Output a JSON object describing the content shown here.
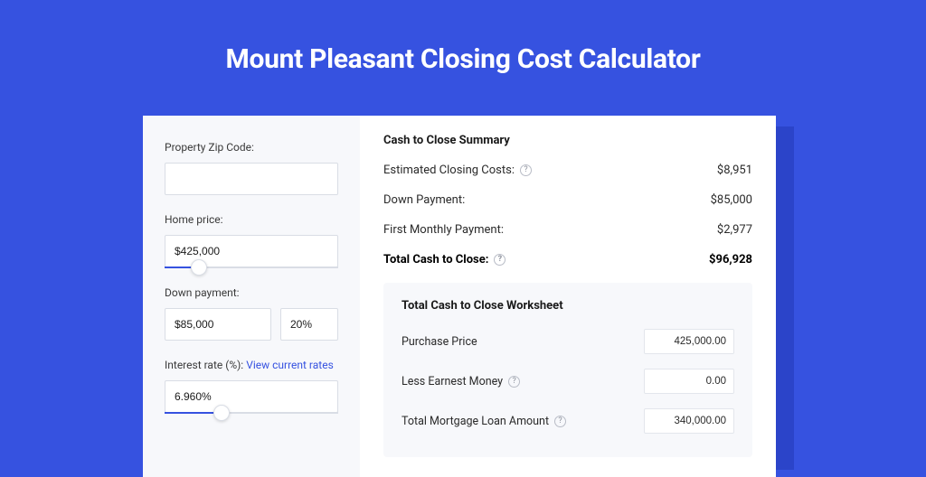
{
  "colors": {
    "page_bg": "#3652e0",
    "shadow": "#2b44c9",
    "card_bg": "#ffffff",
    "panel_bg": "#f7f8fb",
    "border": "#d9dde5",
    "text": "#1a1a1a",
    "accent": "#3652e0",
    "muted": "#8a8f9a"
  },
  "title": "Mount Pleasant Closing Cost Calculator",
  "left": {
    "zip": {
      "label": "Property Zip Code:",
      "value": ""
    },
    "home_price": {
      "label": "Home price:",
      "value": "$425,000",
      "slider_pct": 20
    },
    "down_payment": {
      "label": "Down payment:",
      "value": "$85,000",
      "pct": "20%"
    },
    "interest": {
      "label_prefix": "Interest rate (%): ",
      "link_text": "View current rates",
      "value": "6.960%",
      "slider_pct": 33
    }
  },
  "summary": {
    "title": "Cash to Close Summary",
    "rows": [
      {
        "label": "Estimated Closing Costs:",
        "help": true,
        "value": "$8,951",
        "bold": false
      },
      {
        "label": "Down Payment:",
        "help": false,
        "value": "$85,000",
        "bold": false
      },
      {
        "label": "First Monthly Payment:",
        "help": false,
        "value": "$2,977",
        "bold": false
      },
      {
        "label": "Total Cash to Close:",
        "help": true,
        "value": "$96,928",
        "bold": true
      }
    ]
  },
  "worksheet": {
    "title": "Total Cash to Close Worksheet",
    "rows": [
      {
        "label": "Purchase Price",
        "help": false,
        "value": "425,000.00"
      },
      {
        "label": "Less Earnest Money",
        "help": true,
        "value": "0.00"
      },
      {
        "label": "Total Mortgage Loan Amount",
        "help": true,
        "value": "340,000.00"
      }
    ]
  }
}
